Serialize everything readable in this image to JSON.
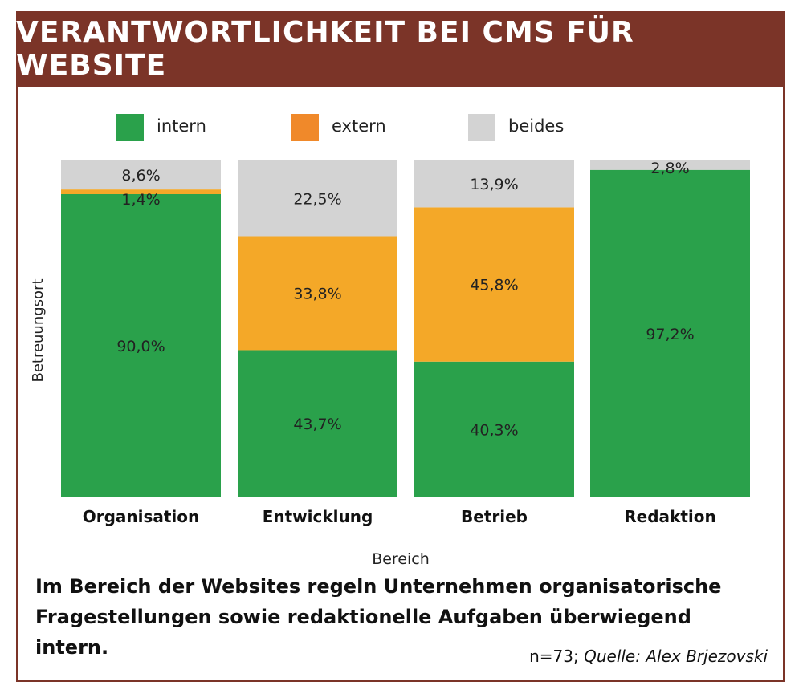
{
  "header": {
    "title": "VERANTWORTLICHKEIT BEI CMS FÜR WEBSITE",
    "bg_color": "#7b3428"
  },
  "chart_data": {
    "type": "bar",
    "stacked": true,
    "categories": [
      "Organisation",
      "Entwicklung",
      "Betrieb",
      "Redaktion"
    ],
    "series": [
      {
        "name": "intern",
        "color": "#2aa14b",
        "values": [
          90.0,
          43.7,
          40.3,
          97.2
        ],
        "labels": [
          "90,0%",
          "43,7%",
          "40,3%",
          "97,2%"
        ]
      },
      {
        "name": "extern",
        "color": "#f4a828",
        "values": [
          1.4,
          33.8,
          45.8,
          0
        ],
        "labels": [
          "1,4%",
          "33,8%",
          "45,8%",
          ""
        ]
      },
      {
        "name": "beides",
        "color": "#d3d3d3",
        "values": [
          8.6,
          22.5,
          13.9,
          2.8
        ],
        "labels": [
          "8,6%",
          "22,5%",
          "13,9%",
          "2,8%"
        ]
      }
    ],
    "legend_colors": {
      "intern": "#2aa14b",
      "extern": "#f0892a",
      "beides": "#d3d3d3"
    },
    "xlabel": "Bereich",
    "ylabel": "Betreuungsort",
    "ylim": [
      0,
      100
    ],
    "legend_position": "top",
    "grid": false
  },
  "caption": "Im Bereich der Websites regeln Unternehmen organisatorische Fragestellungen sowie redaktionelle Aufgaben überwiegend intern.",
  "source": {
    "n": "n=73;",
    "text": "Quelle: Alex Brjezovski"
  }
}
